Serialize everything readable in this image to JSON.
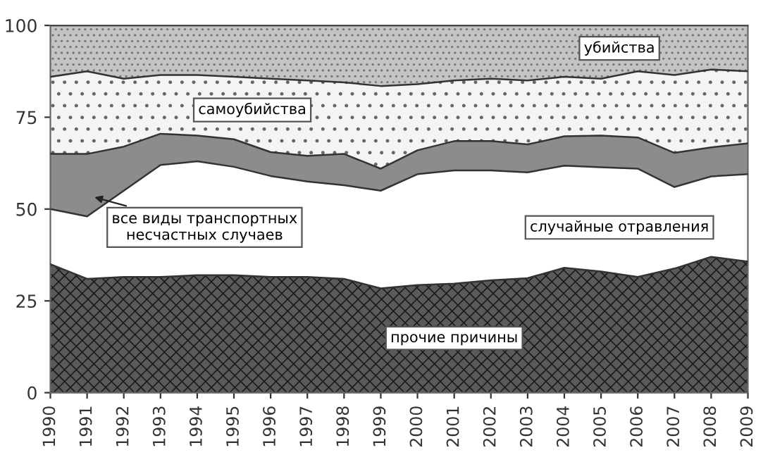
{
  "chart_data": {
    "type": "area",
    "stacked": true,
    "x": [
      1990,
      1991,
      1992,
      1993,
      1994,
      1995,
      1996,
      1997,
      1998,
      1999,
      2000,
      2001,
      2002,
      2003,
      2004,
      2005,
      2006,
      2007,
      2008,
      2009
    ],
    "xlim": [
      1990,
      2009
    ],
    "xticks": [
      1990,
      1991,
      1992,
      1993,
      1994,
      1995,
      1996,
      1997,
      1998,
      1999,
      2000,
      2001,
      2002,
      2003,
      2004,
      2005,
      2006,
      2007,
      2008,
      2009
    ],
    "ylim": [
      0,
      100
    ],
    "yticks": [
      0,
      25,
      50,
      75,
      100
    ],
    "grid": false,
    "legend": false,
    "series": [
      {
        "name": "прочие причины",
        "color": "#5a5a5a",
        "values": [
          35,
          31,
          31.5,
          31.5,
          32,
          32,
          31.5,
          31.5,
          31,
          28.4,
          29.3,
          29.7,
          30.6,
          31.2,
          34,
          33,
          31.5,
          33.8,
          37,
          35.7
        ]
      },
      {
        "name": "случайные отравления",
        "color": "#ffffff",
        "values": [
          15,
          17,
          23.5,
          30.5,
          31,
          29.5,
          27.5,
          26,
          25.5,
          26.6,
          30.2,
          30.8,
          29.9,
          28.8,
          27.8,
          28.4,
          29.5,
          22.2,
          21.9,
          23.8
        ]
      },
      {
        "name": "все виды транспортных несчастных случаев",
        "color": "#8c8c8c",
        "values": [
          15,
          17,
          12,
          8.5,
          7,
          7.5,
          6.5,
          7,
          8.5,
          6,
          6.5,
          8,
          8,
          7.6,
          8,
          8.6,
          8.5,
          9.3,
          7.9,
          8.4
        ]
      },
      {
        "name": "самоубийства",
        "color": "#f4f4f4",
        "values": [
          21,
          22.5,
          18.5,
          16,
          16.5,
          17,
          20,
          20.5,
          19.5,
          22.5,
          18,
          16.5,
          17,
          17.4,
          16.2,
          15.5,
          18,
          21.2,
          21.2,
          19.6
        ]
      },
      {
        "name": "убийства",
        "color": "#c4c4c4",
        "values": [
          14,
          12.5,
          14.5,
          13.5,
          13.5,
          14,
          14.5,
          15,
          15.5,
          16.5,
          16,
          15,
          14.5,
          15,
          14,
          14.5,
          12.5,
          13.5,
          12,
          12.5
        ]
      }
    ]
  }
}
